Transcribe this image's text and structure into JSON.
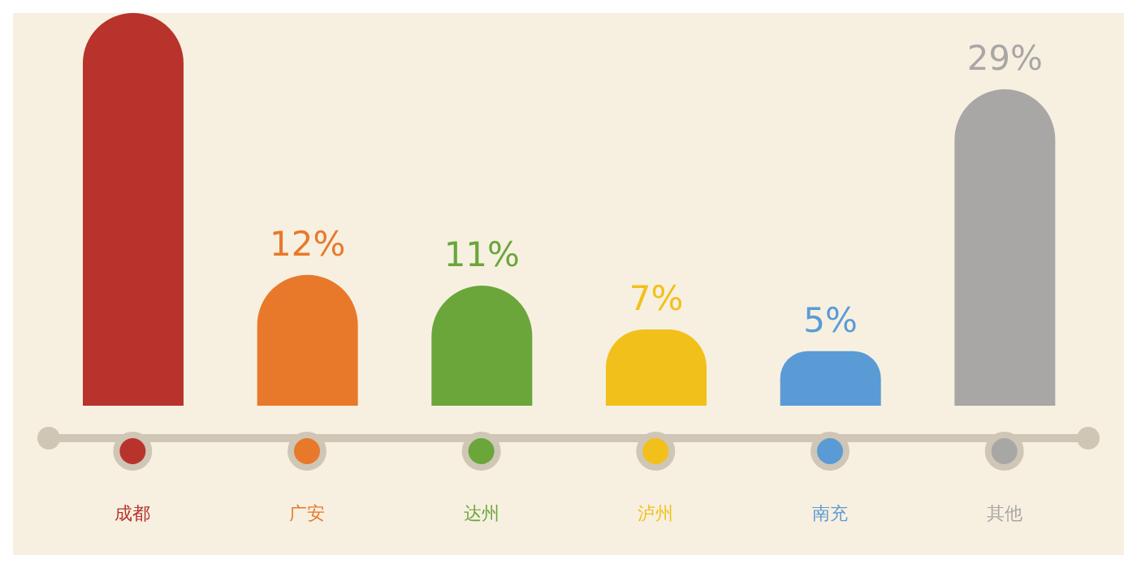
{
  "chart_data": {
    "type": "bar",
    "categories": [
      "成都",
      "广安",
      "达州",
      "泸州",
      "南充",
      "其他"
    ],
    "values": [
      36,
      12,
      11,
      7,
      5,
      29
    ],
    "colors": [
      "#b8332c",
      "#e8792b",
      "#6aa63a",
      "#f2c01a",
      "#5b9bd5",
      "#a9a7a5"
    ],
    "value_labels": [
      null,
      "12%",
      "11%",
      "7%",
      "5%",
      "29%"
    ]
  }
}
